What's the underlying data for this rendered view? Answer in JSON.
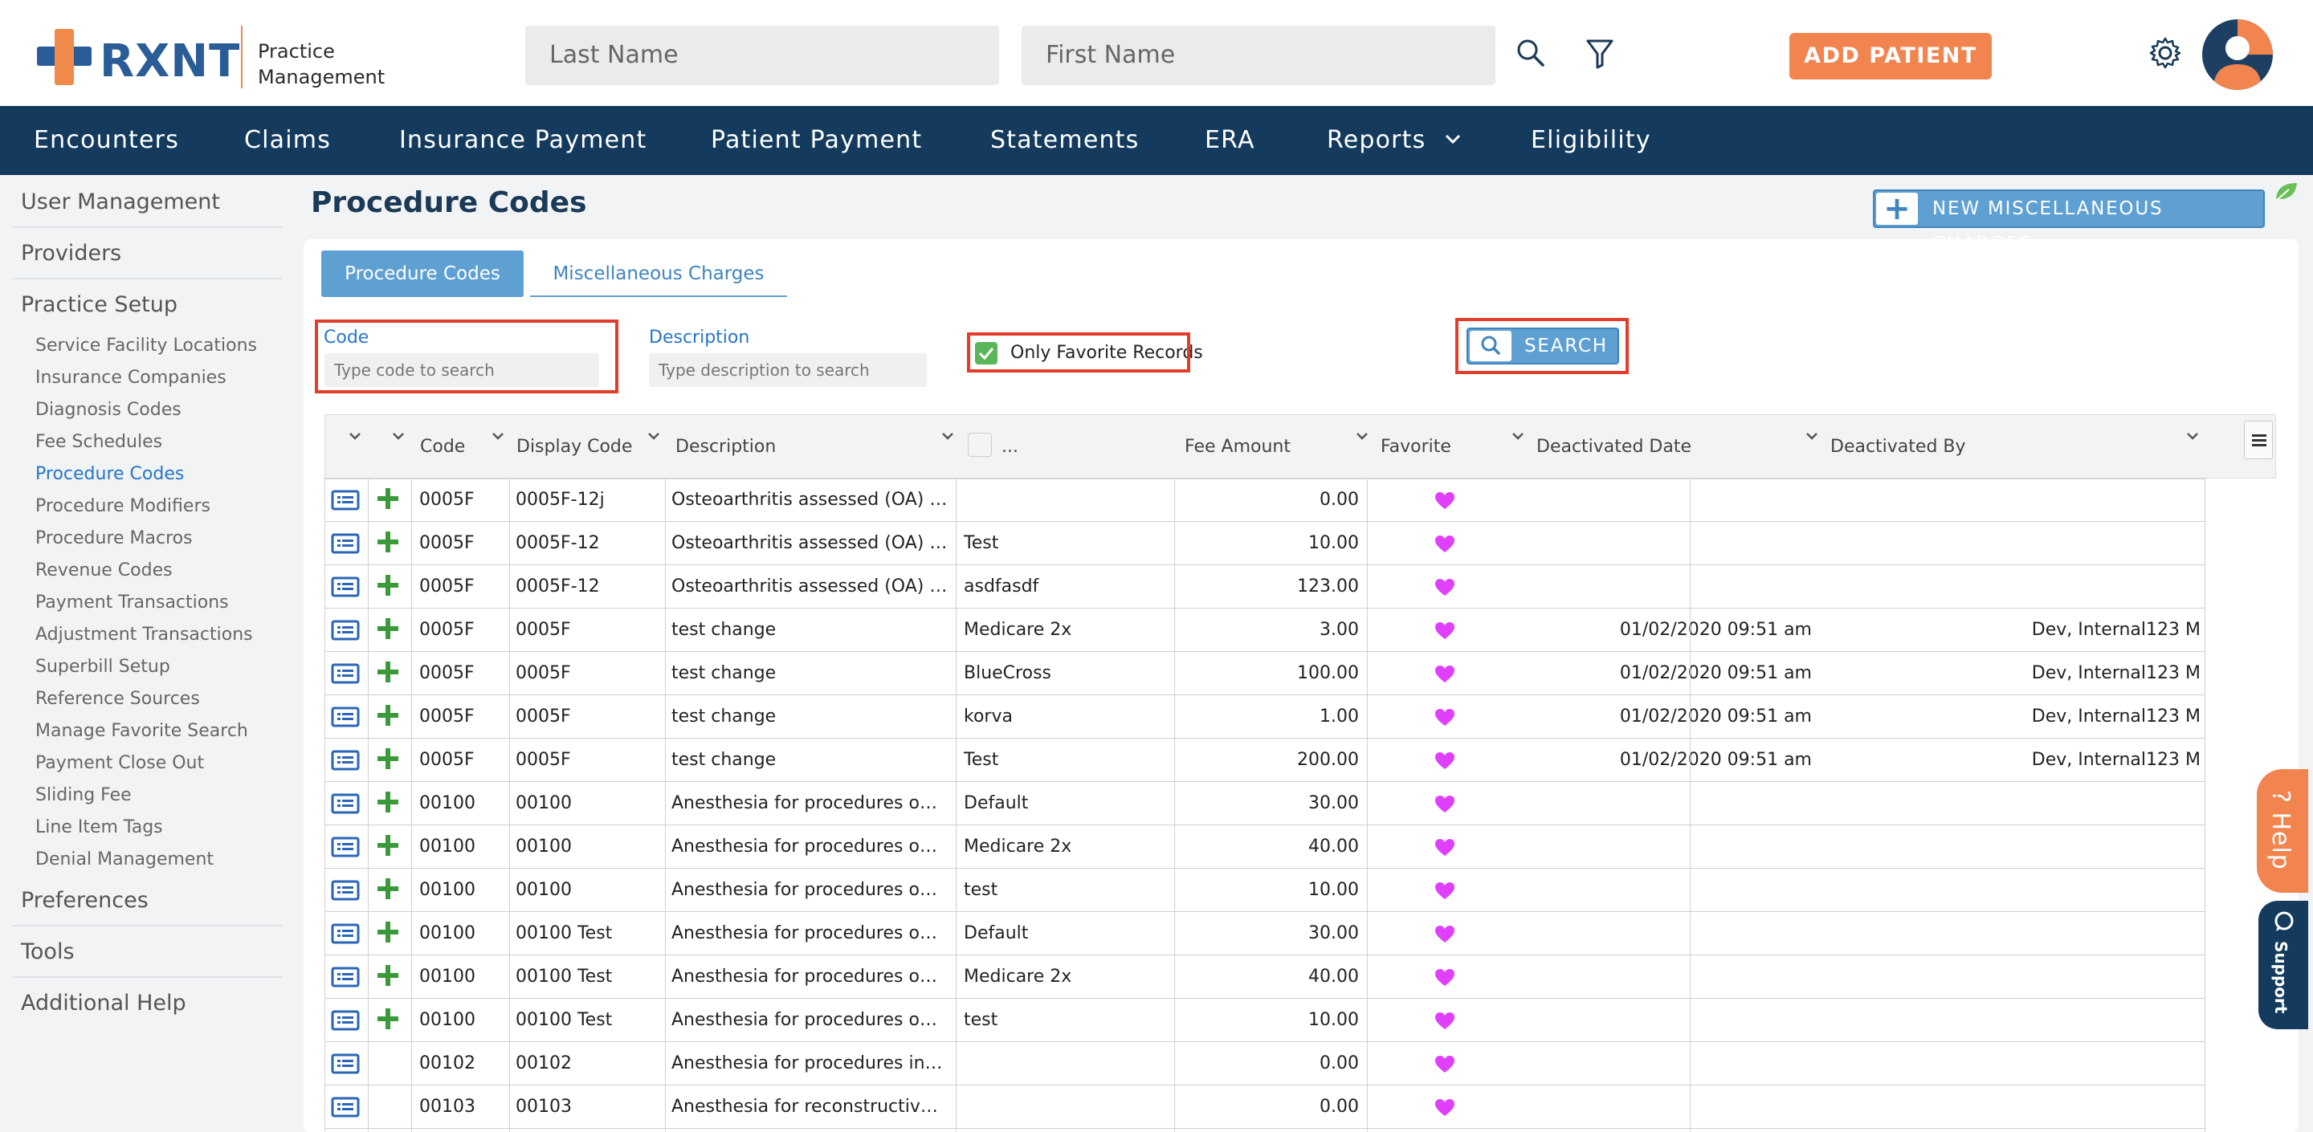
{
  "header": {
    "logo_text": "RXNT",
    "logo_sub_line1": "Practice",
    "logo_sub_line2": "Management",
    "last_name_placeholder": "Last Name",
    "first_name_placeholder": "First Name",
    "add_patient_label": "ADD PATIENT"
  },
  "nav": {
    "items": [
      {
        "label": "Encounters"
      },
      {
        "label": "Claims"
      },
      {
        "label": "Insurance Payment"
      },
      {
        "label": "Patient Payment"
      },
      {
        "label": "Statements"
      },
      {
        "label": "ERA"
      },
      {
        "label": "Reports"
      },
      {
        "label": "Eligibility"
      }
    ]
  },
  "sidebar": {
    "user_management": "User Management",
    "providers": "Providers",
    "practice_setup": "Practice Setup",
    "sub_items": [
      {
        "label": "Service Facility Locations"
      },
      {
        "label": "Insurance Companies"
      },
      {
        "label": "Diagnosis Codes"
      },
      {
        "label": "Fee Schedules"
      },
      {
        "label": "Procedure Codes"
      },
      {
        "label": "Procedure Modifiers"
      },
      {
        "label": "Procedure Macros"
      },
      {
        "label": "Revenue Codes"
      },
      {
        "label": "Payment Transactions"
      },
      {
        "label": "Adjustment Transactions"
      },
      {
        "label": "Superbill Setup"
      },
      {
        "label": "Reference Sources"
      },
      {
        "label": "Manage Favorite Search"
      },
      {
        "label": "Payment Close Out"
      },
      {
        "label": "Sliding Fee"
      },
      {
        "label": "Line Item Tags"
      },
      {
        "label": "Denial Management"
      }
    ],
    "preferences": "Preferences",
    "tools": "Tools",
    "additional_help": "Additional Help"
  },
  "main": {
    "title": "Procedure Codes",
    "new_misc_label": "NEW MISCELLANEOUS CHARGES",
    "tabs": [
      {
        "label": "Procedure Codes"
      },
      {
        "label": "Miscellaneous Charges"
      }
    ],
    "filters": {
      "code_label": "Code",
      "code_placeholder": "Type code to search",
      "description_label": "Description",
      "description_placeholder": "Type description to search",
      "favorite_label": "Only Favorite Records",
      "search_label": "SEARCH"
    }
  },
  "grid": {
    "columns": {
      "code": "Code",
      "display_code": "Display Code",
      "description": "Description",
      "fee_schedule": "...",
      "fee_amount": "Fee Amount",
      "favorite": "Favorite",
      "deactivated_date": "Deactivated Date",
      "deactivated_by": "Deactivated By"
    },
    "rows": [
      {
        "code": "0005F",
        "display": "0005F-12j",
        "desc": "Osteoarthritis assessed (OA) Includes...",
        "fee_sched": "",
        "amount": "0.00",
        "deact_date": "",
        "deact_by": "",
        "plus": true
      },
      {
        "code": "0005F",
        "display": "0005F-12",
        "desc": "Osteoarthritis assessed (OA) Includes...",
        "fee_sched": "Test",
        "amount": "10.00",
        "deact_date": "",
        "deact_by": "",
        "plus": true
      },
      {
        "code": "0005F",
        "display": "0005F-12",
        "desc": "Osteoarthritis assessed (OA) Includes...",
        "fee_sched": "asdfasdf",
        "amount": "123.00",
        "deact_date": "",
        "deact_by": "",
        "plus": true
      },
      {
        "code": "0005F",
        "display": "0005F",
        "desc": "test change",
        "fee_sched": "Medicare 2x",
        "amount": "3.00",
        "deact_date": "01/02/2020 09:51 am",
        "deact_by": "Dev, Internal123 M",
        "plus": true
      },
      {
        "code": "0005F",
        "display": "0005F",
        "desc": "test change",
        "fee_sched": "BlueCross",
        "amount": "100.00",
        "deact_date": "01/02/2020 09:51 am",
        "deact_by": "Dev, Internal123 M",
        "plus": true
      },
      {
        "code": "0005F",
        "display": "0005F",
        "desc": "test change",
        "fee_sched": "korva",
        "amount": "1.00",
        "deact_date": "01/02/2020 09:51 am",
        "deact_by": "Dev, Internal123 M",
        "plus": true
      },
      {
        "code": "0005F",
        "display": "0005F",
        "desc": "test change",
        "fee_sched": "Test",
        "amount": "200.00",
        "deact_date": "01/02/2020 09:51 am",
        "deact_by": "Dev, Internal123 M",
        "plus": true
      },
      {
        "code": "00100",
        "display": "00100",
        "desc": "Anesthesia for procedures on salivary glands",
        "fee_sched": "Default",
        "amount": "30.00",
        "deact_date": "",
        "deact_by": "",
        "plus": true
      },
      {
        "code": "00100",
        "display": "00100",
        "desc": "Anesthesia for procedures on salivary glands",
        "fee_sched": "Medicare 2x",
        "amount": "40.00",
        "deact_date": "",
        "deact_by": "",
        "plus": true
      },
      {
        "code": "00100",
        "display": "00100",
        "desc": "Anesthesia for procedures on salivary glands",
        "fee_sched": "test",
        "amount": "10.00",
        "deact_date": "",
        "deact_by": "",
        "plus": true
      },
      {
        "code": "00100",
        "display": "00100 Test",
        "desc": "Anesthesia for procedures on salivary glands",
        "fee_sched": "Default",
        "amount": "30.00",
        "deact_date": "",
        "deact_by": "",
        "plus": true
      },
      {
        "code": "00100",
        "display": "00100 Test",
        "desc": "Anesthesia for procedures on salivary glands",
        "fee_sched": "Medicare 2x",
        "amount": "40.00",
        "deact_date": "",
        "deact_by": "",
        "plus": true
      },
      {
        "code": "00100",
        "display": "00100 Test",
        "desc": "Anesthesia for procedures on salivary glands",
        "fee_sched": "test",
        "amount": "10.00",
        "deact_date": "",
        "deact_by": "",
        "plus": true
      },
      {
        "code": "00102",
        "display": "00102",
        "desc": "Anesthesia for procedures involving plastic repair",
        "fee_sched": "",
        "amount": "0.00",
        "deact_date": "",
        "deact_by": "",
        "plus": false
      },
      {
        "code": "00103",
        "display": "00103",
        "desc": "Anesthesia for reconstructive procedures of eyelid",
        "fee_sched": "",
        "amount": "0.00",
        "deact_date": "",
        "deact_by": "",
        "plus": false
      }
    ]
  },
  "widgets": {
    "help_label": "? Help",
    "support_label": "Support"
  },
  "colors": {
    "brand_navy": "#143b5e",
    "accent_orange": "#f2844f",
    "button_blue": "#5fa0d3",
    "favorite_heart": "#e040fb",
    "plus_green": "#3a9a3a"
  }
}
